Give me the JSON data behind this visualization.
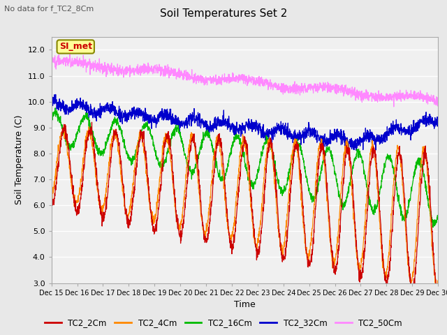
{
  "title": "Soil Temperatures Set 2",
  "subtitle": "No data for f_TC2_8Cm",
  "xlabel": "Time",
  "ylabel": "Soil Temperature (C)",
  "ylim": [
    3.0,
    12.5
  ],
  "yticks": [
    3.0,
    4.0,
    5.0,
    6.0,
    7.0,
    8.0,
    9.0,
    10.0,
    11.0,
    12.0
  ],
  "xtick_labels": [
    "Dec 15",
    "Dec 16",
    "Dec 17",
    "Dec 18",
    "Dec 19",
    "Dec 20",
    "Dec 21",
    "Dec 22",
    "Dec 23",
    "Dec 24",
    "Dec 25",
    "Dec 26",
    "Dec 27",
    "Dec 28",
    "Dec 29",
    "Dec 30"
  ],
  "legend_label": "SI_met",
  "series_labels": [
    "TC2_2Cm",
    "TC2_4Cm",
    "TC2_16Cm",
    "TC2_32Cm",
    "TC2_50Cm"
  ],
  "series_colors": [
    "#cc0000",
    "#ff8800",
    "#00bb00",
    "#0000cc",
    "#ff88ff"
  ],
  "background_color": "#e8e8e8",
  "plot_bg_color": "#f0f0f0",
  "grid_color": "#ffffff"
}
